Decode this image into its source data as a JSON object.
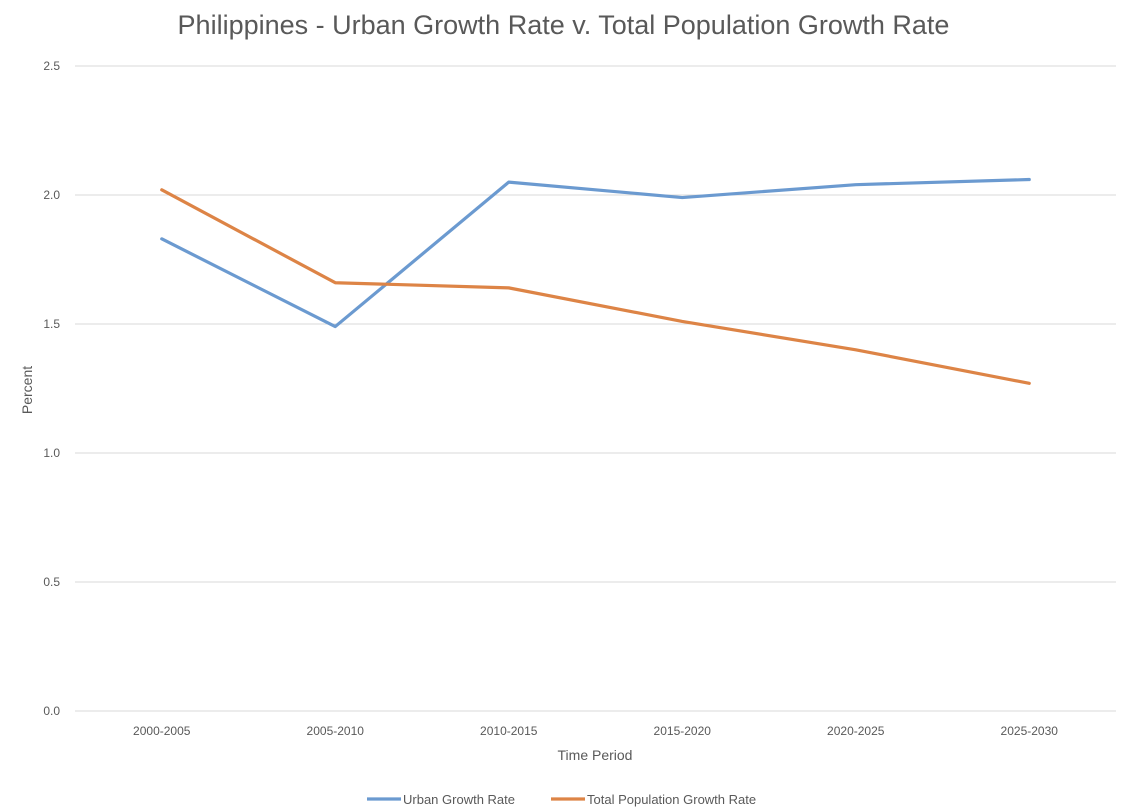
{
  "chart_data": {
    "type": "line",
    "title": "Philippines - Urban Growth Rate v. Total Population Growth Rate",
    "xlabel": "Time Period",
    "ylabel": "Percent",
    "categories": [
      "2000-2005",
      "2005-2010",
      "2010-2015",
      "2015-2020",
      "2020-2025",
      "2025-2030"
    ],
    "ylim": [
      0,
      2.5
    ],
    "yticks": [
      "0.0",
      "0.5",
      "1.0",
      "1.5",
      "2.0",
      "2.5"
    ],
    "grid": true,
    "legend_position": "bottom",
    "series": [
      {
        "name": "Urban Growth Rate",
        "color": "#6b9ad0",
        "values": [
          1.83,
          1.49,
          2.05,
          1.99,
          2.04,
          2.06
        ]
      },
      {
        "name": "Total Population Growth Rate",
        "color": "#dd8446",
        "values": [
          2.02,
          1.66,
          1.64,
          1.51,
          1.4,
          1.27
        ]
      }
    ]
  }
}
